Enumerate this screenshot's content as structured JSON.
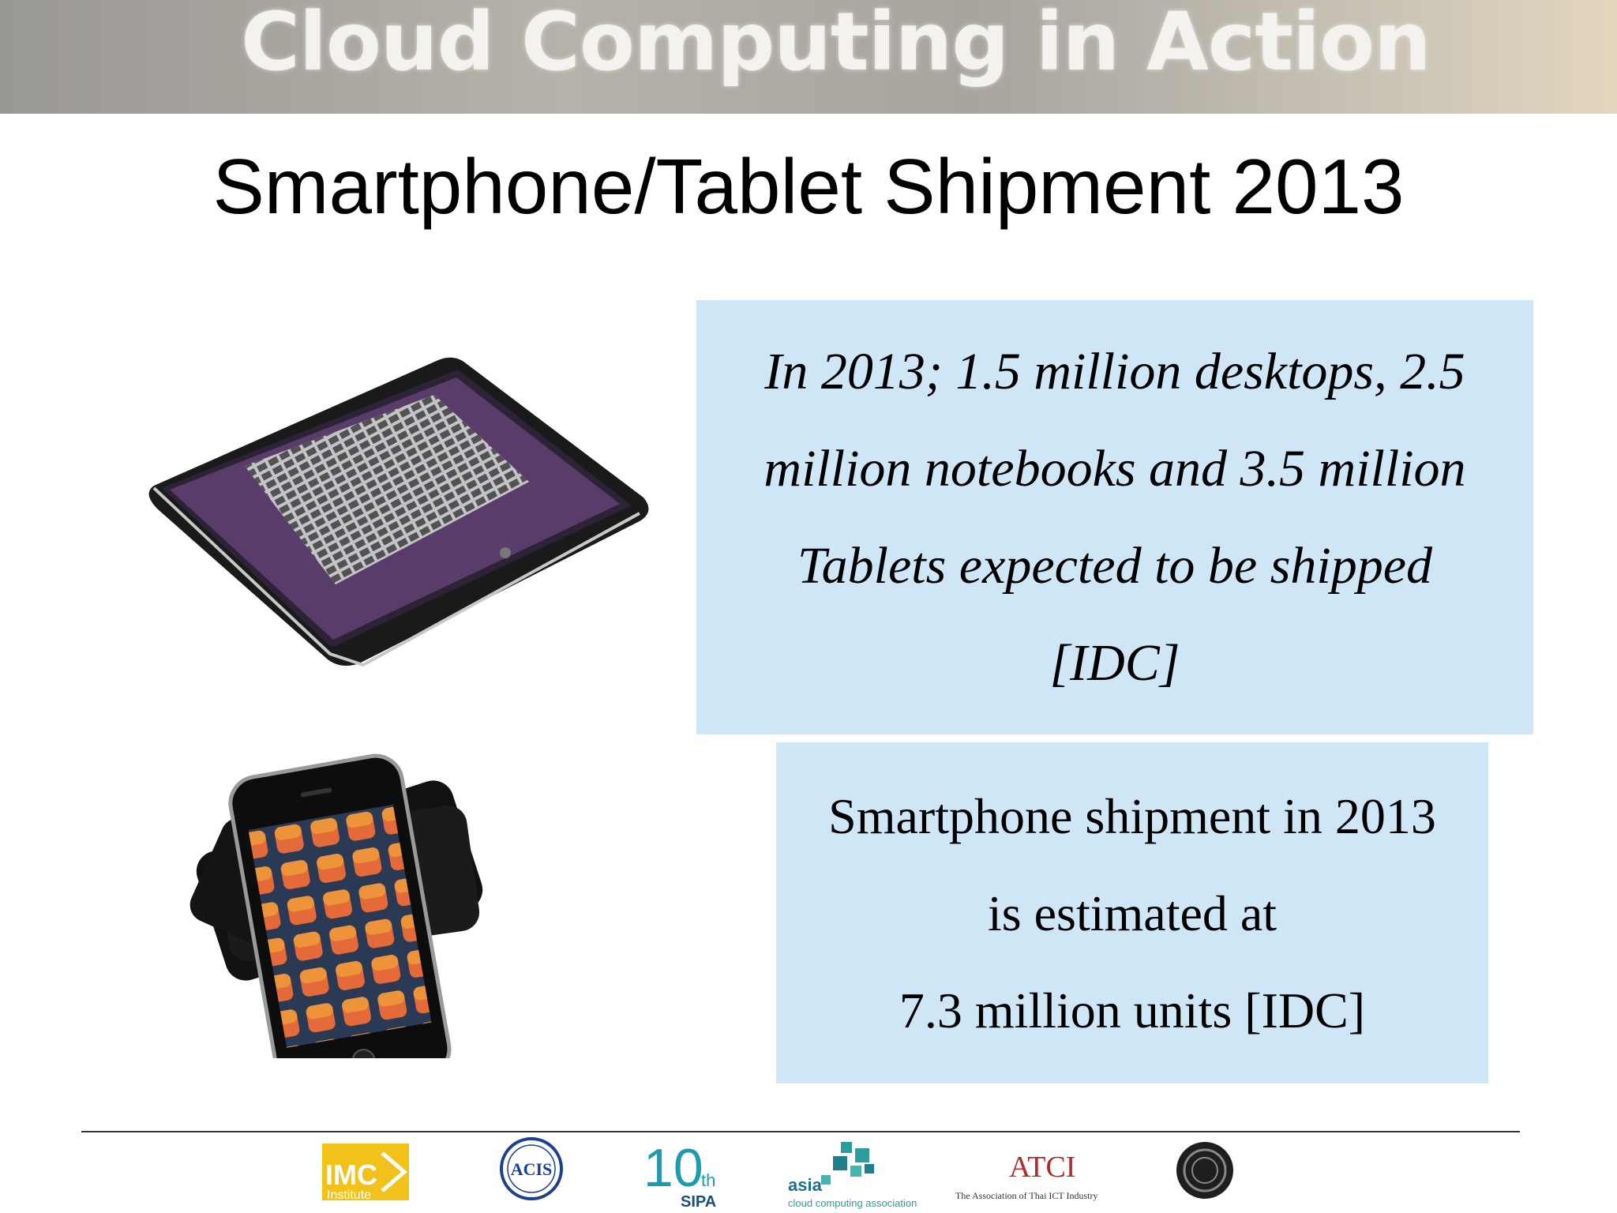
{
  "banner": {
    "title": "Cloud Computing in Action"
  },
  "slide": {
    "title": "Smartphone/Tablet Shipment 2013"
  },
  "box1": {
    "lines": [
      "In 2013;  1.5 million desktops, 2.5",
      "million notebooks and 3.5 million",
      "Tablets expected to be shipped",
      "[IDC]"
    ]
  },
  "box2": {
    "lines": [
      "Smartphone shipment in 2013",
      "is estimated at",
      "7.3 million units [IDC]"
    ]
  },
  "images": {
    "tablet": "tablet-photo",
    "smartphones": "smartphones-photo"
  },
  "footer": {
    "logos": {
      "imc_main": "IMC",
      "imc_sub": "Institute",
      "acis": "ACIS",
      "sipa_num": "10",
      "sipa_th": "th",
      "sipa_name": "SIPA",
      "asia_top": "asia",
      "asia_bottom": "cloud computing association",
      "atci_mark": "ATCI",
      "atci_name": "The Association of Thai ICT Industry"
    }
  },
  "colors": {
    "box_bg": "#cfe6f6",
    "imc_yellow": "#f2c21b",
    "sipa_teal": "#1f9bb0",
    "asia_teal": "#2a9d9c"
  }
}
